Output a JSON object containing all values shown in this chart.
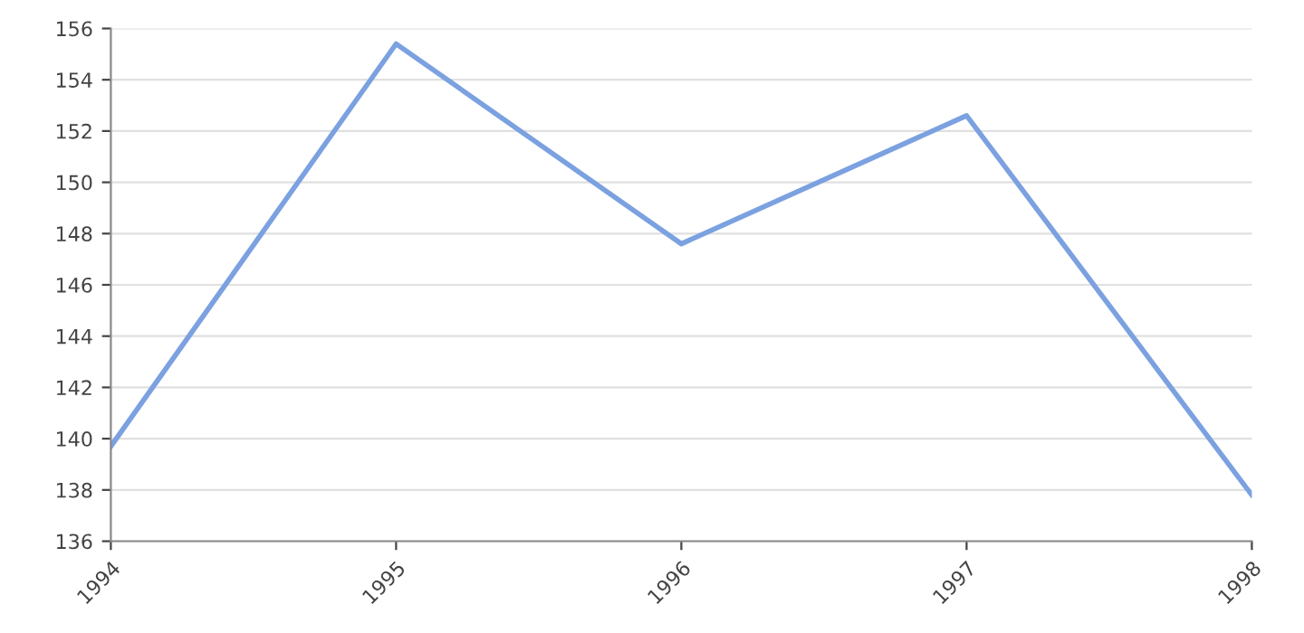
{
  "chart_data": {
    "type": "line",
    "categories": [
      "1994",
      "1995",
      "1996",
      "1997",
      "1998"
    ],
    "series": [
      {
        "color": "#7ba1e0",
        "values": [
          139.7,
          155.4,
          147.6,
          152.6,
          137.8
        ]
      }
    ],
    "ylim": [
      136,
      156
    ],
    "yticks": [
      136,
      138,
      140,
      142,
      144,
      146,
      148,
      150,
      152,
      154,
      156
    ],
    "grid": "y",
    "marker": "none",
    "line_style": "solid"
  }
}
